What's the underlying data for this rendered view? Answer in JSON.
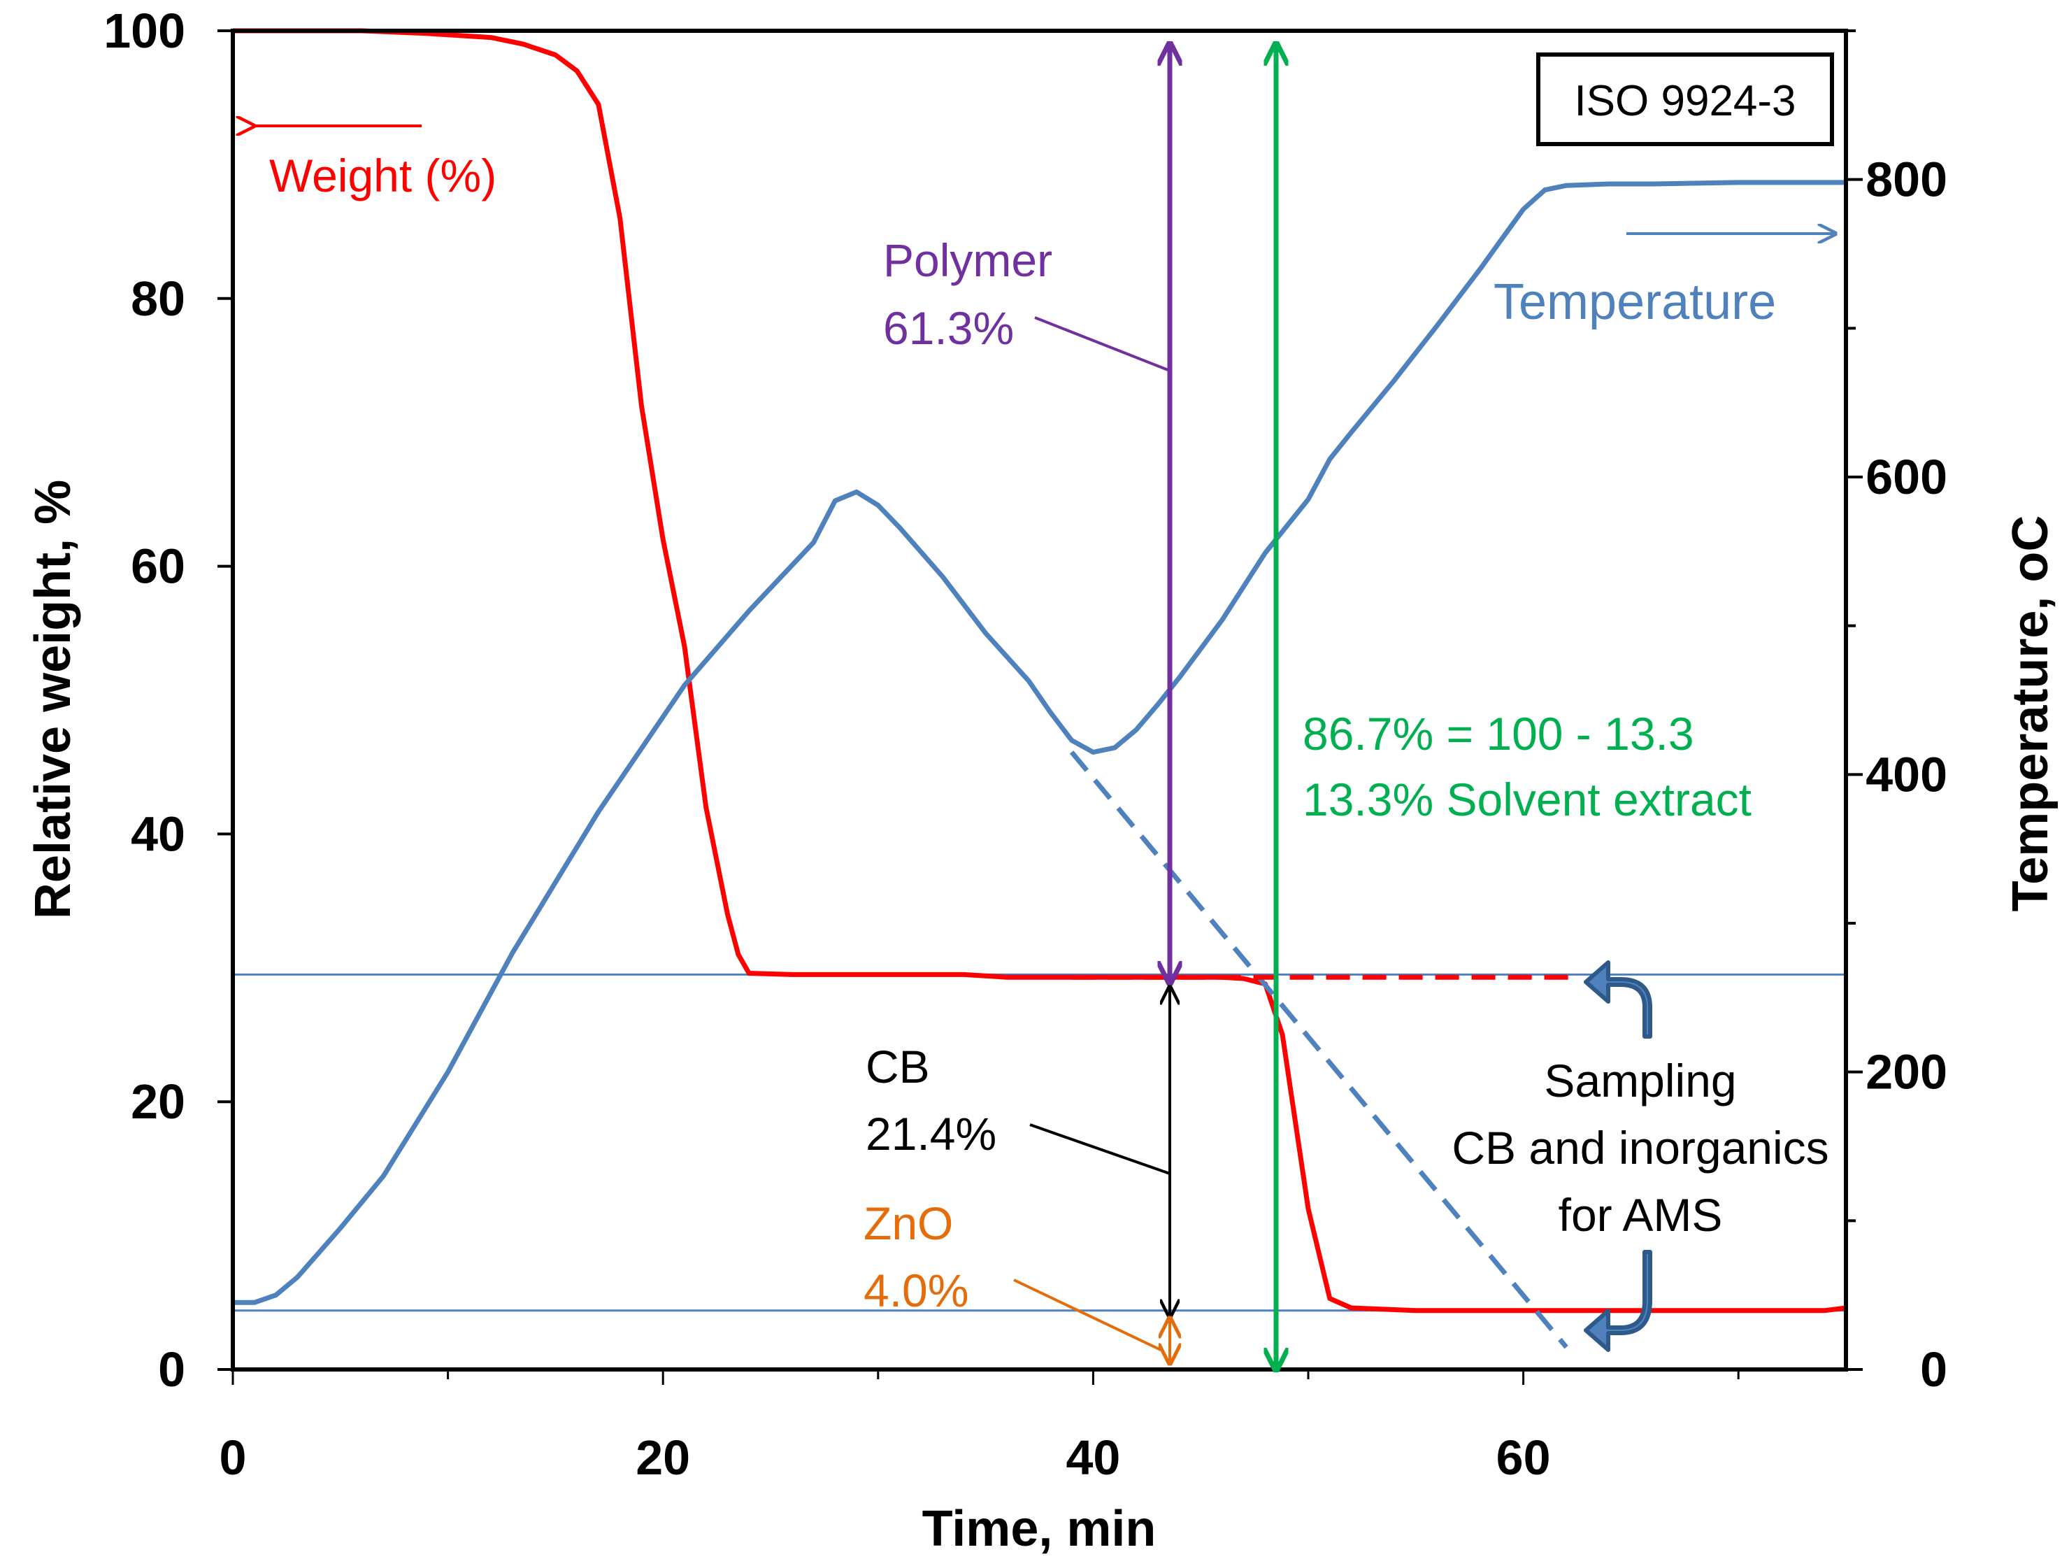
{
  "chart_data": {
    "type": "line",
    "xlabel": "Time, min",
    "ylabel_left": "Relative weight, %",
    "ylabel_right": "Temperature, ",
    "ylabel_right_unit": "oC",
    "xlim": [
      0,
      75
    ],
    "ylim_left": [
      0,
      100
    ],
    "ylim_right": [
      0,
      900
    ],
    "x_ticks": [
      0,
      20,
      40,
      60
    ],
    "y_left_ticks": [
      0,
      20,
      40,
      60,
      80,
      100
    ],
    "y_right_ticks": [
      0,
      200,
      400,
      600,
      800
    ],
    "grid": false,
    "series": [
      {
        "name": "Weight (%)",
        "axis": "left",
        "color": "#ff0000",
        "x": [
          0,
          3,
          6,
          9,
          12,
          13.5,
          15,
          16,
          17,
          18,
          19,
          20,
          21,
          22,
          23,
          23.5,
          24,
          26,
          30,
          34,
          36,
          40,
          44,
          46,
          47,
          48,
          48.8,
          50,
          51,
          52,
          55,
          60,
          70,
          74,
          75
        ],
        "y": [
          100,
          100,
          100,
          99.8,
          99.5,
          99,
          98.2,
          97,
          94.5,
          86,
          72,
          62,
          54,
          42,
          34,
          31,
          29.6,
          29.5,
          29.5,
          29.5,
          29.3,
          29.3,
          29.3,
          29.3,
          29.2,
          28.8,
          25,
          12,
          5.3,
          4.6,
          4.4,
          4.4,
          4.4,
          4.4,
          4.6
        ]
      },
      {
        "name": "Temperature",
        "axis": "right",
        "color": "#4f81bd",
        "x": [
          0,
          1,
          2,
          3,
          5,
          7,
          10,
          13,
          17,
          21,
          24,
          27,
          28,
          29,
          30,
          31,
          33,
          35,
          37,
          38,
          39,
          40,
          41,
          42,
          43,
          44,
          46,
          48,
          50,
          51,
          52,
          54,
          56,
          58,
          59,
          60,
          61,
          62,
          64,
          66,
          70,
          75
        ],
        "y": [
          45,
          45,
          50,
          62,
          95,
          130,
          200,
          280,
          375,
          460,
          510,
          556,
          584,
          590,
          581,
          566,
          533,
          495,
          463,
          442,
          423,
          415,
          418,
          430,
          447,
          465,
          504,
          549,
          585,
          612,
          630,
          665,
          702,
          740,
          760,
          780,
          793,
          796,
          797,
          797,
          798,
          798
        ]
      },
      {
        "name": "Temperature extrapolation",
        "axis": "right",
        "color": "#4f81bd",
        "dashed": true,
        "x": [
          39,
          62
        ],
        "y": [
          415,
          15
        ]
      },
      {
        "name": "Sampling level",
        "axis": "left",
        "color": "#ff0000",
        "dashed": true,
        "x": [
          39,
          62.5
        ],
        "y": [
          29.3,
          29.3
        ]
      }
    ],
    "reference_lines_left": [
      29.5,
      4.4
    ],
    "annotations": {
      "weight_label": "Weight (%)",
      "temperature_label": "Temperature",
      "polymer_name": "Polymer",
      "polymer_value": "61.3%",
      "solvent_line1": "86.7% = 100 - 13.3",
      "solvent_line2": "13.3%  Solvent extract",
      "cb_name": "CB",
      "cb_value": "21.4%",
      "zno_name": "ZnO",
      "zno_value": "4.0%",
      "sampling_line1": "Sampling",
      "sampling_line2": "CB and inorganics",
      "sampling_line3": "for AMS",
      "iso": "ISO 9924-3"
    }
  },
  "colors": {
    "weight": "#ff0000",
    "temperature": "#4f81bd",
    "polymer": "#7030a0",
    "solvent": "#00b050",
    "zno": "#e46c0a",
    "cb": "#000000"
  }
}
